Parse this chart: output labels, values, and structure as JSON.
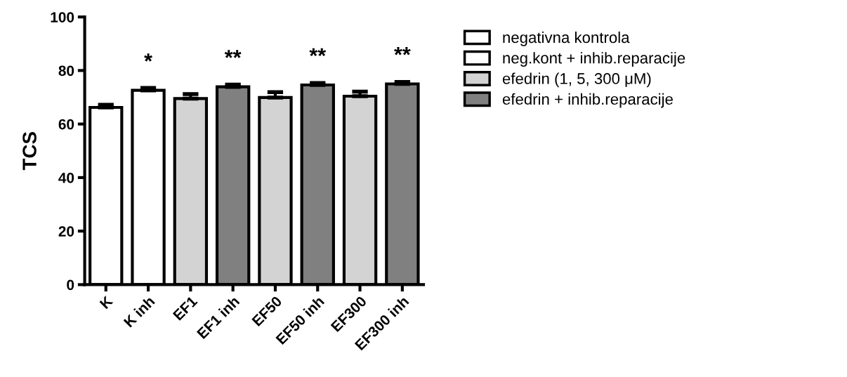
{
  "chart_data": {
    "type": "bar",
    "ylabel": "TCS",
    "categories": [
      "K",
      "K inh",
      "EF1",
      "EF1 inh",
      "EF50",
      "EF50 inh",
      "EF300",
      "EF300 inh"
    ],
    "series": [
      {
        "name": "negativna kontrola",
        "color": "#ffffff",
        "values": [
          66.2,
          null,
          null,
          null,
          null,
          null,
          null,
          null
        ],
        "errors": [
          1.0,
          null,
          null,
          null,
          null,
          null,
          null,
          null
        ]
      },
      {
        "name": "neg.kont + inhib.reparacije",
        "color": "#ffffff",
        "values": [
          null,
          72.6,
          null,
          null,
          null,
          null,
          null,
          null
        ],
        "errors": [
          null,
          0.9,
          null,
          null,
          null,
          null,
          null,
          null
        ]
      },
      {
        "name": "efedrin (1, 5, 300 μM)",
        "color": "#d3d3d3",
        "values": [
          null,
          null,
          69.5,
          null,
          69.9,
          null,
          70.4,
          null
        ],
        "errors": [
          null,
          null,
          1.7,
          null,
          2.0,
          null,
          1.7,
          null
        ]
      },
      {
        "name": "efedrin + inhib.reparacije",
        "color": "#808080",
        "values": [
          null,
          null,
          null,
          73.9,
          null,
          74.6,
          null,
          75.0
        ],
        "errors": [
          null,
          null,
          null,
          0.8,
          null,
          0.7,
          null,
          0.7
        ]
      }
    ],
    "ylim": [
      0,
      100
    ],
    "yticks": [
      0,
      20,
      40,
      60,
      80,
      100
    ],
    "grid": false,
    "legend": "right",
    "annotations": [
      {
        "text": "*",
        "x": "K inh",
        "y": 72.6
      },
      {
        "text": "**",
        "x": "EF1 inh",
        "y": 73.9
      },
      {
        "text": "**",
        "x": "EF50 inh",
        "y": 74.6
      },
      {
        "text": "**",
        "x": "EF300 inh",
        "y": 75.0
      }
    ]
  }
}
